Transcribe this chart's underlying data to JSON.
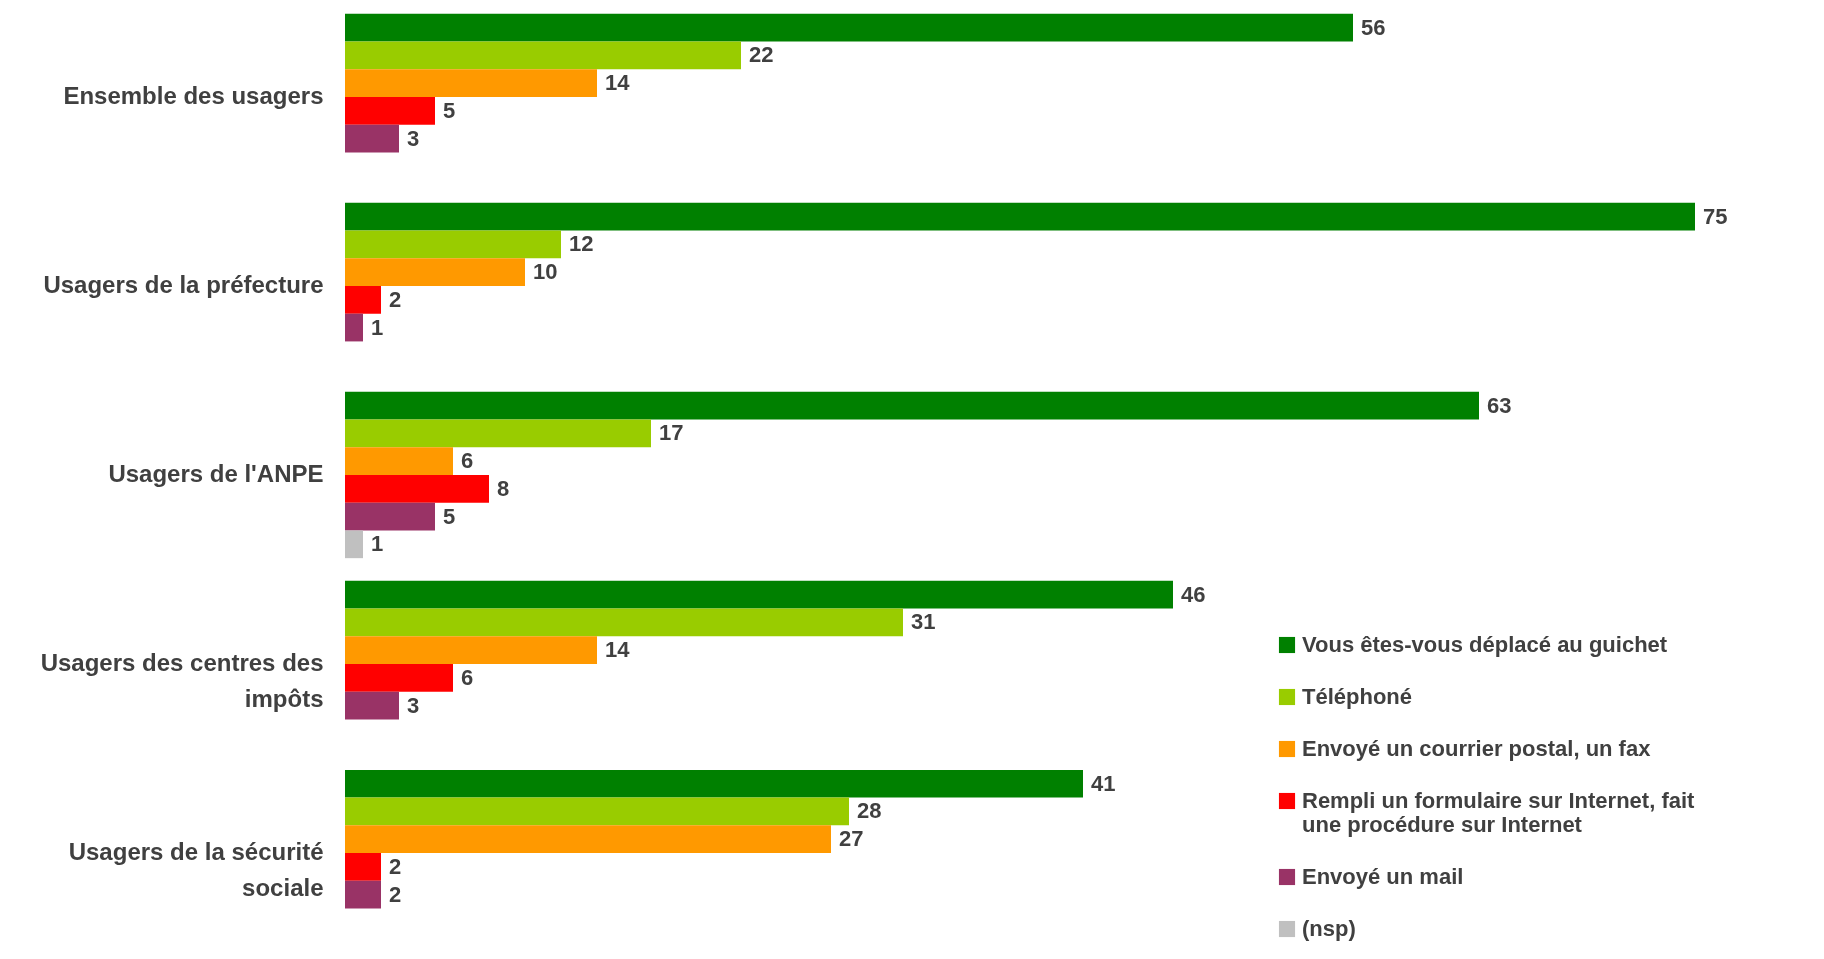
{
  "chart_data": {
    "type": "bar",
    "orientation": "horizontal",
    "data_labels": true,
    "legend": "bottom right",
    "categories": [
      "Ensemble des usagers",
      "Usagers de la préfecture",
      "Usagers de l'ANPE",
      "Usagers des centres des impôts",
      "Usagers de la sécurité sociale"
    ],
    "series": [
      {
        "name": "Vous êtes-vous déplacé au guichet",
        "color": "#008000",
        "values": [
          56,
          75,
          63,
          46,
          41
        ]
      },
      {
        "name": "Téléphoné",
        "color": "#99cc00",
        "values": [
          22,
          12,
          17,
          31,
          28
        ]
      },
      {
        "name": "Envoyé un courrier postal, un fax",
        "color": "#ff9900",
        "values": [
          14,
          10,
          6,
          14,
          27
        ]
      },
      {
        "name": "Rempli un formulaire sur Internet, fait une procédure sur Internet",
        "color": "#ff0000",
        "values": [
          5,
          2,
          8,
          6,
          2
        ]
      },
      {
        "name": "Envoyé un mail",
        "color": "#993366",
        "values": [
          3,
          1,
          5,
          3,
          2
        ]
      },
      {
        "name": "(nsp)",
        "color": "#c0c0c0",
        "values": [
          null,
          null,
          1,
          null,
          null
        ]
      }
    ]
  }
}
